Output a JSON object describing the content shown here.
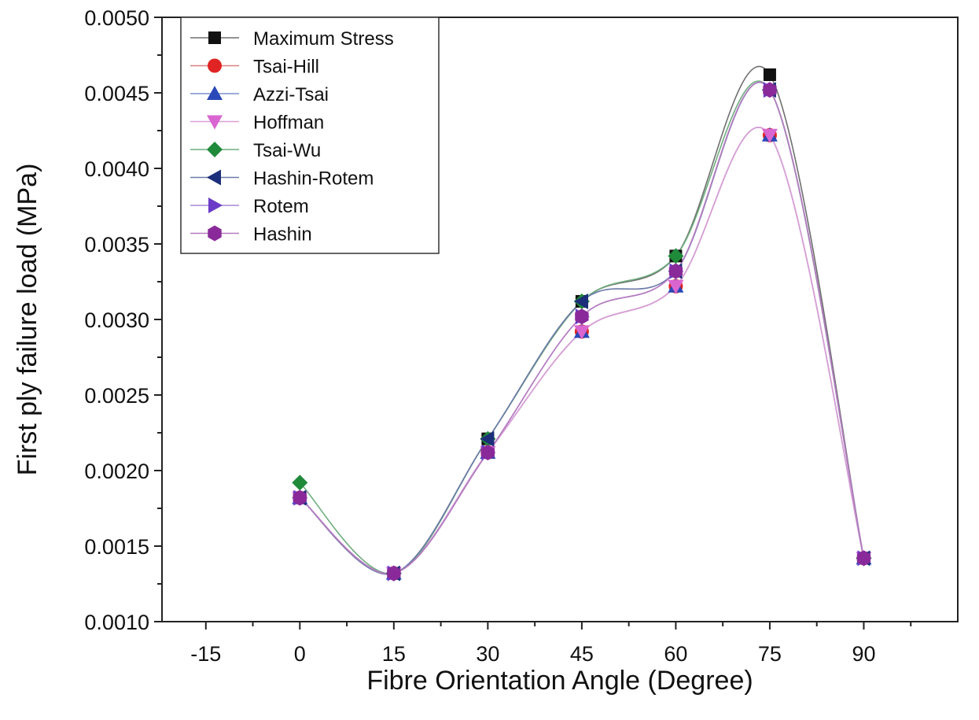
{
  "chart_data": {
    "type": "line",
    "title": "",
    "xlabel": "Fibre Orientation Angle (Degree)",
    "ylabel": "First ply failure load (MPa)",
    "xlim": [
      -22,
      105
    ],
    "ylim": [
      0.001,
      0.005
    ],
    "x_ticks": [
      "-15",
      "0",
      "15",
      "30",
      "45",
      "60",
      "75",
      "90"
    ],
    "y_ticks": [
      "0.0010",
      "0.0015",
      "0.0020",
      "0.0025",
      "0.0030",
      "0.0035",
      "0.0040",
      "0.0045",
      "0.0050"
    ],
    "x": [
      0,
      15,
      30,
      45,
      60,
      75,
      90
    ],
    "legend_position": "top-left",
    "series": [
      {
        "name": "Maximum Stress",
        "marker": "square",
        "color": "#111111",
        "line_color": "#6f6f6f",
        "values": [
          0.00182,
          0.00132,
          0.00221,
          0.00312,
          0.00342,
          0.00462,
          0.00142
        ]
      },
      {
        "name": "Tsai-Hill",
        "marker": "circle",
        "color": "#e02424",
        "line_color": "#d98080",
        "values": [
          0.00182,
          0.00132,
          0.00212,
          0.00292,
          0.00322,
          0.00422,
          0.00142
        ]
      },
      {
        "name": "Azzi-Tsai",
        "marker": "triangle-up",
        "color": "#2a48b8",
        "line_color": "#7d8fd0",
        "values": [
          0.00182,
          0.00132,
          0.00212,
          0.00292,
          0.00322,
          0.00422,
          0.00142
        ]
      },
      {
        "name": "Hoffman",
        "marker": "triangle-down",
        "color": "#d966d0",
        "line_color": "#dca0d8",
        "values": [
          0.00182,
          0.00132,
          0.00212,
          0.00292,
          0.00322,
          0.00422,
          0.00142
        ]
      },
      {
        "name": "Tsai-Wu",
        "marker": "diamond",
        "color": "#1f8a3a",
        "line_color": "#6fae7e",
        "values": [
          0.00192,
          0.00132,
          0.00221,
          0.00312,
          0.00342,
          0.00452,
          0.00142
        ]
      },
      {
        "name": "Hashin-Rotem",
        "marker": "triangle-left",
        "color": "#1c2f7a",
        "line_color": "#6b7aa8",
        "values": [
          0.00182,
          0.00132,
          0.00221,
          0.00312,
          0.00332,
          0.00452,
          0.00142
        ]
      },
      {
        "name": "Rotem",
        "marker": "triangle-right",
        "color": "#6a3cc8",
        "line_color": "#a58ad8",
        "values": [
          0.00182,
          0.00132,
          0.00212,
          0.00302,
          0.00332,
          0.00452,
          0.00142
        ]
      },
      {
        "name": "Hashin",
        "marker": "hexagon",
        "color": "#8a2a9a",
        "line_color": "#b67cc0",
        "values": [
          0.00182,
          0.00132,
          0.00212,
          0.00302,
          0.00332,
          0.00452,
          0.00142
        ]
      }
    ]
  }
}
